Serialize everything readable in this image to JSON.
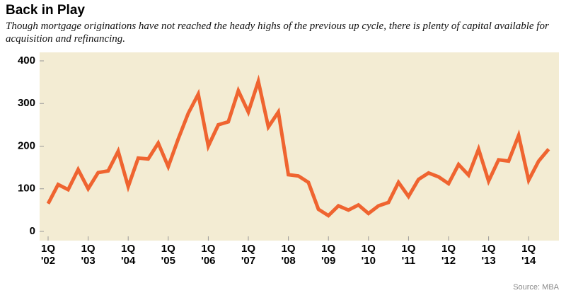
{
  "chart_data": {
    "type": "line",
    "title": "Back in Play",
    "subtitle": "Though mortgage originations have not reached the heady highs of the previous up cycle, there is plenty of capital available for acquisition and refinancing.",
    "source": "Source: MBA",
    "categories": [
      "1Q\n'02",
      null,
      null,
      null,
      "1Q\n'03",
      null,
      null,
      null,
      "1Q\n'04",
      null,
      null,
      null,
      "1Q\n'05",
      null,
      null,
      null,
      "1Q\n'06",
      null,
      null,
      null,
      "1Q\n'07",
      null,
      null,
      null,
      "1Q\n'08",
      null,
      null,
      null,
      "1Q\n'09",
      null,
      null,
      null,
      "1Q\n'10",
      null,
      null,
      null,
      "1Q\n'11",
      null,
      null,
      null,
      "1Q\n'12",
      null,
      null,
      null,
      "1Q\n'13",
      null,
      null,
      null,
      "1Q\n'14",
      null,
      null
    ],
    "values": [
      65,
      110,
      98,
      145,
      100,
      138,
      142,
      188,
      105,
      172,
      170,
      207,
      152,
      217,
      277,
      322,
      200,
      250,
      257,
      330,
      280,
      352,
      245,
      280,
      133,
      130,
      115,
      52,
      37,
      60,
      50,
      62,
      42,
      60,
      68,
      115,
      82,
      122,
      137,
      128,
      112,
      157,
      132,
      193,
      118,
      168,
      165,
      225,
      120,
      165,
      193
    ],
    "color": "#ef6430",
    "background": "#f3ecd3",
    "ylim": [
      0,
      400
    ],
    "yticks": [
      0,
      100,
      200,
      300,
      400
    ],
    "grid": false
  }
}
